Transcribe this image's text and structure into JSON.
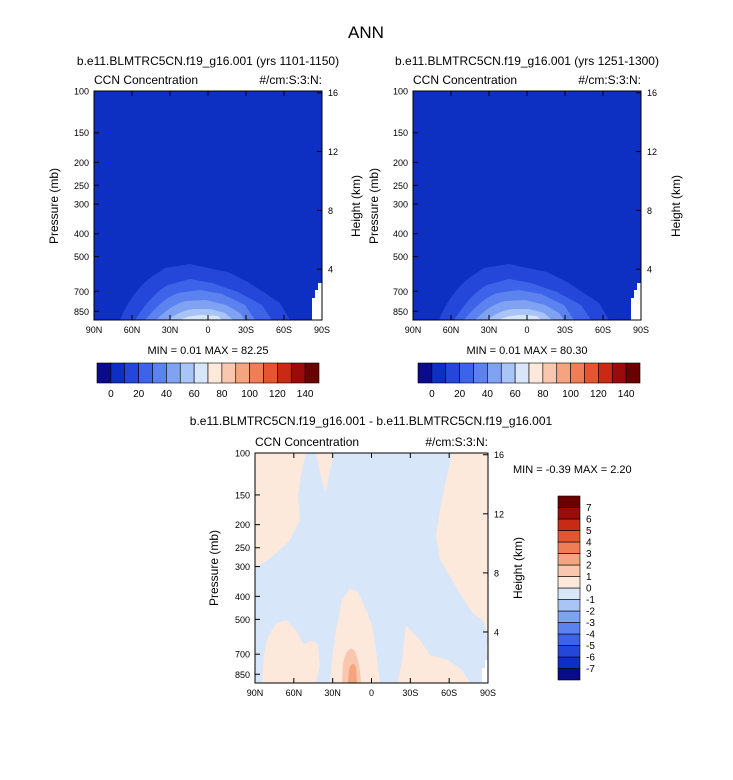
{
  "title": "ANN",
  "panels": [
    {
      "case_title": "b.e11.BLMTRC5CN.f19_g16.001 (yrs 1101-1150)",
      "left_label": "CCN Concentration",
      "right_label": "#/cm:S:3:N:",
      "ylabel": "Pressure (mb)",
      "y2label": "Height (km)",
      "stats": "MIN =   0.01   MAX =  82.25"
    },
    {
      "case_title": "b.e11.BLMTRC5CN.f19_g16.001 (yrs 1251-1300)",
      "left_label": "CCN Concentration",
      "right_label": "#/cm:S:3:N:",
      "ylabel": "Pressure (mb)",
      "y2label": "Height (km)",
      "stats": "MIN =   0.01   MAX =  80.30"
    },
    {
      "case_title": "b.e11.BLMTRC5CN.f19_g16.001 - b.e11.BLMTRC5CN.f19_g16.001",
      "left_label": "CCN Concentration",
      "right_label": "#/cm:S:3:N:",
      "ylabel": "Pressure (mb)",
      "y2label": "Height (km)",
      "stats": "MIN =  -0.39   MAX =   2.20"
    }
  ],
  "colorbar_abs": {
    "colors": [
      "#0a0a8c",
      "#0d2fc2",
      "#2447d9",
      "#3d63e8",
      "#5b82ee",
      "#7fa2f2",
      "#a9c4f6",
      "#d8e6fa",
      "#fde8dc",
      "#f9c7ad",
      "#f4a47f",
      "#ef7d56",
      "#e55530",
      "#c92a14",
      "#9a0c0c",
      "#6a0000"
    ],
    "labels": [
      "0",
      "20",
      "40",
      "60",
      "80",
      "100",
      "120",
      "140"
    ]
  },
  "colorbar_diff": {
    "colors": [
      "#0a0a8c",
      "#0d2fc2",
      "#2447d9",
      "#3d63e8",
      "#5b82ee",
      "#7fa2f2",
      "#a9c4f6",
      "#d8e6fa",
      "#fde8dc",
      "#f9c7ad",
      "#f4a47f",
      "#ef7d56",
      "#e55530",
      "#c92a14",
      "#9a0c0c",
      "#6a0000"
    ],
    "labels": [
      "-7",
      "-6",
      "-5",
      "-4",
      "-3",
      "-2",
      "-1",
      "0",
      "1",
      "2",
      "3",
      "4",
      "5",
      "6",
      "7"
    ]
  },
  "chart_data": [
    {
      "type": "heatmap",
      "title": "b.e11.BLMTRC5CN.f19_g16.001 (yrs 1101-1150)",
      "xlabel": "",
      "ylabel": "Pressure (mb)",
      "y2label": "Height (km)",
      "x_ticks": [
        "90N",
        "60N",
        "30N",
        "0",
        "30S",
        "60S",
        "90S"
      ],
      "x_range": [
        90,
        -90
      ],
      "y_ticks": [
        100,
        150,
        200,
        250,
        300,
        400,
        500,
        700,
        850
      ],
      "y_scale": "log",
      "y_range": [
        100,
        925
      ],
      "y2_ticks": [
        4,
        8,
        12,
        16
      ],
      "min": 0.01,
      "max": 82.25,
      "contour_levels": [
        0,
        10,
        20,
        30,
        40,
        50,
        60,
        70,
        80,
        90,
        100,
        110,
        120,
        130,
        140
      ],
      "background_value_band": "0-10"
    },
    {
      "type": "heatmap",
      "title": "b.e11.BLMTRC5CN.f19_g16.001 (yrs 1251-1300)",
      "xlabel": "",
      "ylabel": "Pressure (mb)",
      "y2label": "Height (km)",
      "x_ticks": [
        "90N",
        "60N",
        "30N",
        "0",
        "30S",
        "60S",
        "90S"
      ],
      "x_range": [
        90,
        -90
      ],
      "y_ticks": [
        100,
        150,
        200,
        250,
        300,
        400,
        500,
        700,
        850
      ],
      "y_scale": "log",
      "y_range": [
        100,
        925
      ],
      "y2_ticks": [
        4,
        8,
        12,
        16
      ],
      "min": 0.01,
      "max": 80.3,
      "contour_levels": [
        0,
        10,
        20,
        30,
        40,
        50,
        60,
        70,
        80,
        90,
        100,
        110,
        120,
        130,
        140
      ],
      "background_value_band": "0-10"
    },
    {
      "type": "heatmap",
      "title": "b.e11.BLMTRC5CN.f19_g16.001 - b.e11.BLMTRC5CN.f19_g16.001",
      "xlabel": "",
      "ylabel": "Pressure (mb)",
      "y2label": "Height (km)",
      "x_ticks": [
        "90N",
        "60N",
        "30N",
        "0",
        "30S",
        "60S",
        "90S"
      ],
      "x_range": [
        90,
        -90
      ],
      "y_ticks": [
        100,
        150,
        200,
        250,
        300,
        400,
        500,
        700,
        850
      ],
      "y_scale": "log",
      "y_range": [
        100,
        925
      ],
      "y2_ticks": [
        4,
        8,
        12,
        16
      ],
      "min": -0.39,
      "max": 2.2,
      "contour_levels": [
        -7,
        -6,
        -5,
        -4,
        -3,
        -2,
        -1,
        0,
        1,
        2,
        3,
        4,
        5,
        6,
        7
      ],
      "dominant_value_bands": [
        "-1-0",
        "0-1"
      ]
    }
  ]
}
